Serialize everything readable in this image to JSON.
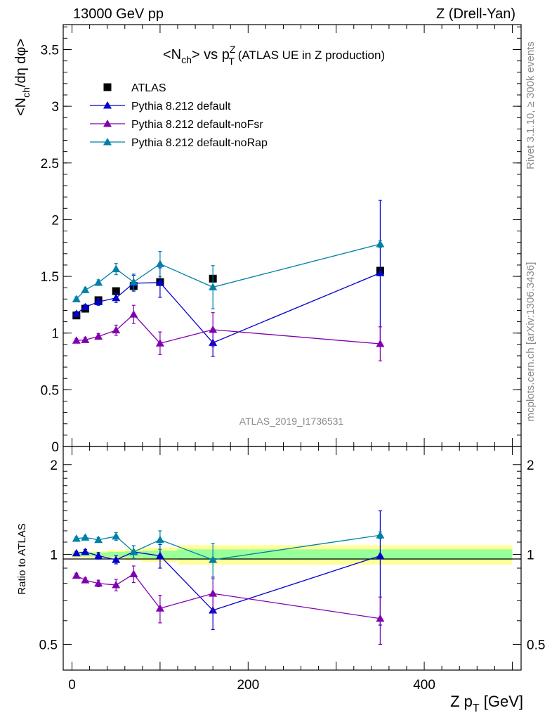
{
  "header": {
    "left": "13000 GeV pp",
    "right": "Z (Drell-Yan)"
  },
  "side_labels": {
    "rivet": "Rivet 3.1.10, ≥ 300k events",
    "mcplots": "mcplots.cern.ch [arXiv:1306.3436]"
  },
  "chart_data": [
    {
      "type": "scatter",
      "panel": "main",
      "title": "<N_ch> vs p_T^Z (ATLAS UE in Z production)",
      "title_parts": {
        "lhs": "<N",
        "lhs_sub": "ch",
        "mid": "> vs p",
        "sup": "Z",
        "sub": "T",
        "rest": " (ATLAS UE in Z production)"
      },
      "ylabel": "<N_ch/dη dφ>",
      "ylabel_parts": {
        "a": "<N",
        "sub": "ch",
        "b": "/dη dφ>"
      },
      "xlim": [
        -10,
        510
      ],
      "ylim": [
        0,
        3.72
      ],
      "yticks": [
        0,
        0.5,
        1,
        1.5,
        2,
        2.5,
        3,
        3.5
      ],
      "ytick_labels": [
        "0",
        "0.5",
        "1",
        "1.5",
        "2",
        "2.5",
        "3",
        "3.5"
      ],
      "watermark": "ATLAS_2019_I1736531",
      "legend_position": "top-left",
      "series": [
        {
          "name": "ATLAS",
          "color": "#000000",
          "marker": "square",
          "line": false,
          "x": [
            5,
            15,
            30,
            50,
            70,
            100,
            160,
            350
          ],
          "y": [
            1.155,
            1.215,
            1.29,
            1.37,
            1.415,
            1.45,
            1.48,
            1.55
          ],
          "err": [
            0.02,
            0.02,
            0.02,
            0.02,
            0.02,
            0.02,
            0.02,
            0.02
          ]
        },
        {
          "name": "Pythia 8.212 default",
          "color": "#0000cc",
          "marker": "triangle",
          "line": true,
          "x": [
            5,
            15,
            30,
            50,
            70,
            100,
            160,
            350
          ],
          "y": [
            1.17,
            1.23,
            1.275,
            1.31,
            1.44,
            1.445,
            0.915,
            1.53
          ],
          "err": [
            0.02,
            0.02,
            0.03,
            0.04,
            0.07,
            0.13,
            0.12,
            0.64
          ]
        },
        {
          "name": "Pythia 8.212 default-noFsr",
          "color": "#8000b0",
          "marker": "triangle",
          "line": true,
          "x": [
            5,
            15,
            30,
            50,
            70,
            100,
            160,
            350
          ],
          "y": [
            0.935,
            0.94,
            0.97,
            1.025,
            1.165,
            0.91,
            1.03,
            0.905
          ],
          "err": [
            0.015,
            0.02,
            0.025,
            0.045,
            0.08,
            0.1,
            0.15,
            0.15
          ]
        },
        {
          "name": "Pythia 8.212 default-noRap",
          "color": "#0080a8",
          "marker": "triangle",
          "line": true,
          "x": [
            5,
            15,
            30,
            50,
            70,
            100,
            160,
            350
          ],
          "y": [
            1.3,
            1.38,
            1.445,
            1.565,
            1.45,
            1.61,
            1.405,
            1.785
          ],
          "err": [
            0.02,
            0.02,
            0.025,
            0.05,
            0.07,
            0.11,
            0.19,
            0.03
          ]
        }
      ]
    },
    {
      "type": "scatter",
      "panel": "ratio",
      "ylabel": "Ratio to ATLAS",
      "xlabel": "Z p_T [GeV]",
      "xlabel_parts": {
        "a": "Z p",
        "sub": "T",
        "b": " [GeV]"
      },
      "xlim": [
        -10,
        510
      ],
      "ylim": [
        0.41,
        2.3
      ],
      "xticks": [
        0,
        200,
        400
      ],
      "xtick_labels": [
        "0",
        "200",
        "400"
      ],
      "yticks": [
        0.5,
        1,
        2
      ],
      "ytick_labels": [
        "0.5",
        "1",
        "2"
      ],
      "bands": {
        "x_edges": [
          0,
          10,
          20,
          40,
          60,
          80,
          120,
          200,
          500
        ],
        "green_halfwidth": [
          0.015,
          0.015,
          0.015,
          0.02,
          0.025,
          0.03,
          0.04,
          0.04
        ],
        "yellow_halfwidth": [
          0.025,
          0.025,
          0.025,
          0.035,
          0.045,
          0.055,
          0.075,
          0.075
        ]
      },
      "series": [
        {
          "name": "Pythia 8.212 default",
          "color": "#0000cc",
          "x": [
            5,
            15,
            30,
            50,
            70,
            100,
            160,
            350
          ],
          "y": [
            1.01,
            1.02,
            0.99,
            0.96,
            1.02,
            0.99,
            0.65,
            0.99
          ],
          "err": [
            0.015,
            0.02,
            0.025,
            0.03,
            0.05,
            0.09,
            0.09,
            0.41
          ]
        },
        {
          "name": "Pythia 8.212 default-noFsr",
          "color": "#8000b0",
          "x": [
            5,
            15,
            30,
            50,
            70,
            100,
            160,
            350
          ],
          "y": [
            0.85,
            0.82,
            0.8,
            0.79,
            0.86,
            0.66,
            0.74,
            0.61
          ],
          "err": [
            0.015,
            0.015,
            0.02,
            0.035,
            0.055,
            0.07,
            0.1,
            0.11
          ]
        },
        {
          "name": "Pythia 8.212 default-noRap",
          "color": "#0080a8",
          "x": [
            5,
            15,
            30,
            50,
            70,
            100,
            160,
            350
          ],
          "y": [
            1.13,
            1.14,
            1.12,
            1.15,
            1.02,
            1.12,
            0.96,
            1.16
          ],
          "err": [
            0.015,
            0.015,
            0.02,
            0.035,
            0.05,
            0.08,
            0.13,
            0.03
          ]
        }
      ]
    }
  ]
}
